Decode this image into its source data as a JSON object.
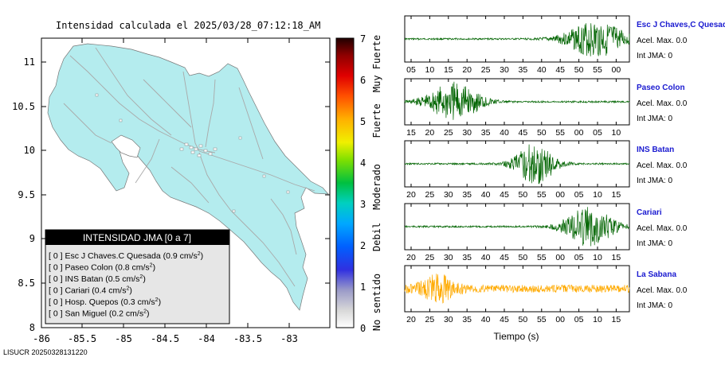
{
  "map": {
    "title": "Intensidad calculada el 2025/03/28_07:12:18_AM",
    "lat_ticks": [
      "11",
      "10.5",
      "10",
      "9.5",
      "9",
      "8.5",
      "8"
    ],
    "lon_ticks": [
      "-86",
      "-85.5",
      "-85",
      "-84.5",
      "-84",
      "-83.5",
      "-83"
    ],
    "land_color": "#b4ecee",
    "footer": "LISUCR 20250328131220"
  },
  "legend": {
    "header": "INTENSIDAD JMA [0 a 7]",
    "stations": [
      {
        "intensity": "[ 0 ]",
        "name": "Esc J Chaves.C Quesada",
        "accel": "(0.9 cm/s",
        "sup": "2",
        ")": ")"
      },
      {
        "intensity": "[ 0 ]",
        "name": "Paseo Colon",
        "accel": "(0.8 cm/s",
        "sup": "2",
        ")": ")"
      },
      {
        "intensity": "[ 0 ]",
        "name": "INS Batan",
        "accel": "(0.5 cm/s",
        "sup": "2",
        ")": ")"
      },
      {
        "intensity": "[ 0 ]",
        "name": "Cariari",
        "accel": "(0.4 cm/s",
        "sup": "2",
        ")": ")"
      },
      {
        "intensity": "[ 0 ]",
        "name": "Hosp. Quepos",
        "accel": "(0.3 cm/s",
        "sup": "2",
        ")": ")"
      },
      {
        "intensity": "[ 0 ]",
        "name": "San Miguel",
        "accel": "(0.2 cm/s",
        "sup": "2",
        ")": ")"
      }
    ]
  },
  "colorbar": {
    "ticks": [
      "7",
      "6",
      "5",
      "4",
      "3",
      "2",
      "1",
      "0"
    ],
    "bands": [
      "Muy Fuerte",
      "Fuerte",
      "Moderado",
      "Debil",
      "No sentido"
    ]
  },
  "chart_data": {
    "type": "line",
    "xlabel": "Tiempo (s)",
    "traces": [
      {
        "name": "Esc J Chaves,C Quesada",
        "accel": "Acel. Max. 0.0",
        "int": "Int JMA: 0",
        "color": "#006400",
        "ticks": [
          "05",
          "10",
          "15",
          "20",
          "25",
          "30",
          "35",
          "40",
          "45",
          "50",
          "55",
          "00"
        ],
        "burst_center": 0.85,
        "burst_width": 0.13,
        "amplitude": 0.85
      },
      {
        "name": "Paseo Colon",
        "accel": "Acel. Max. 0.0",
        "int": "Int JMA: 0",
        "color": "#006400",
        "ticks": [
          "15",
          "20",
          "25",
          "30",
          "35",
          "40",
          "45",
          "50",
          "55",
          "00",
          "05",
          "10"
        ],
        "burst_center": 0.22,
        "burst_width": 0.12,
        "amplitude": 0.9
      },
      {
        "name": "INS Batan",
        "accel": "Acel. Max. 0.0",
        "int": "Int JMA: 0",
        "color": "#006400",
        "ticks": [
          "20",
          "25",
          "30",
          "35",
          "40",
          "45",
          "50",
          "55",
          "00",
          "05",
          "10",
          "15"
        ],
        "burst_center": 0.58,
        "burst_width": 0.09,
        "amplitude": 0.95
      },
      {
        "name": "Cariari",
        "accel": "Acel. Max. 0.0",
        "int": "Int JMA: 0",
        "color": "#006400",
        "ticks": [
          "20",
          "25",
          "30",
          "35",
          "40",
          "45",
          "50",
          "55",
          "00",
          "05",
          "10",
          "15"
        ],
        "burst_center": 0.82,
        "burst_width": 0.11,
        "amplitude": 0.9
      },
      {
        "name": "La Sabana",
        "accel": "Acel. Max. 0.0",
        "int": "Int JMA: 0",
        "color": "#ffaa00",
        "ticks": [
          "20",
          "25",
          "30",
          "35",
          "40",
          "45",
          "50",
          "55",
          "00",
          "05",
          "10",
          "15"
        ],
        "burst_center": 0.15,
        "burst_width": 0.08,
        "amplitude": 0.55
      }
    ]
  }
}
